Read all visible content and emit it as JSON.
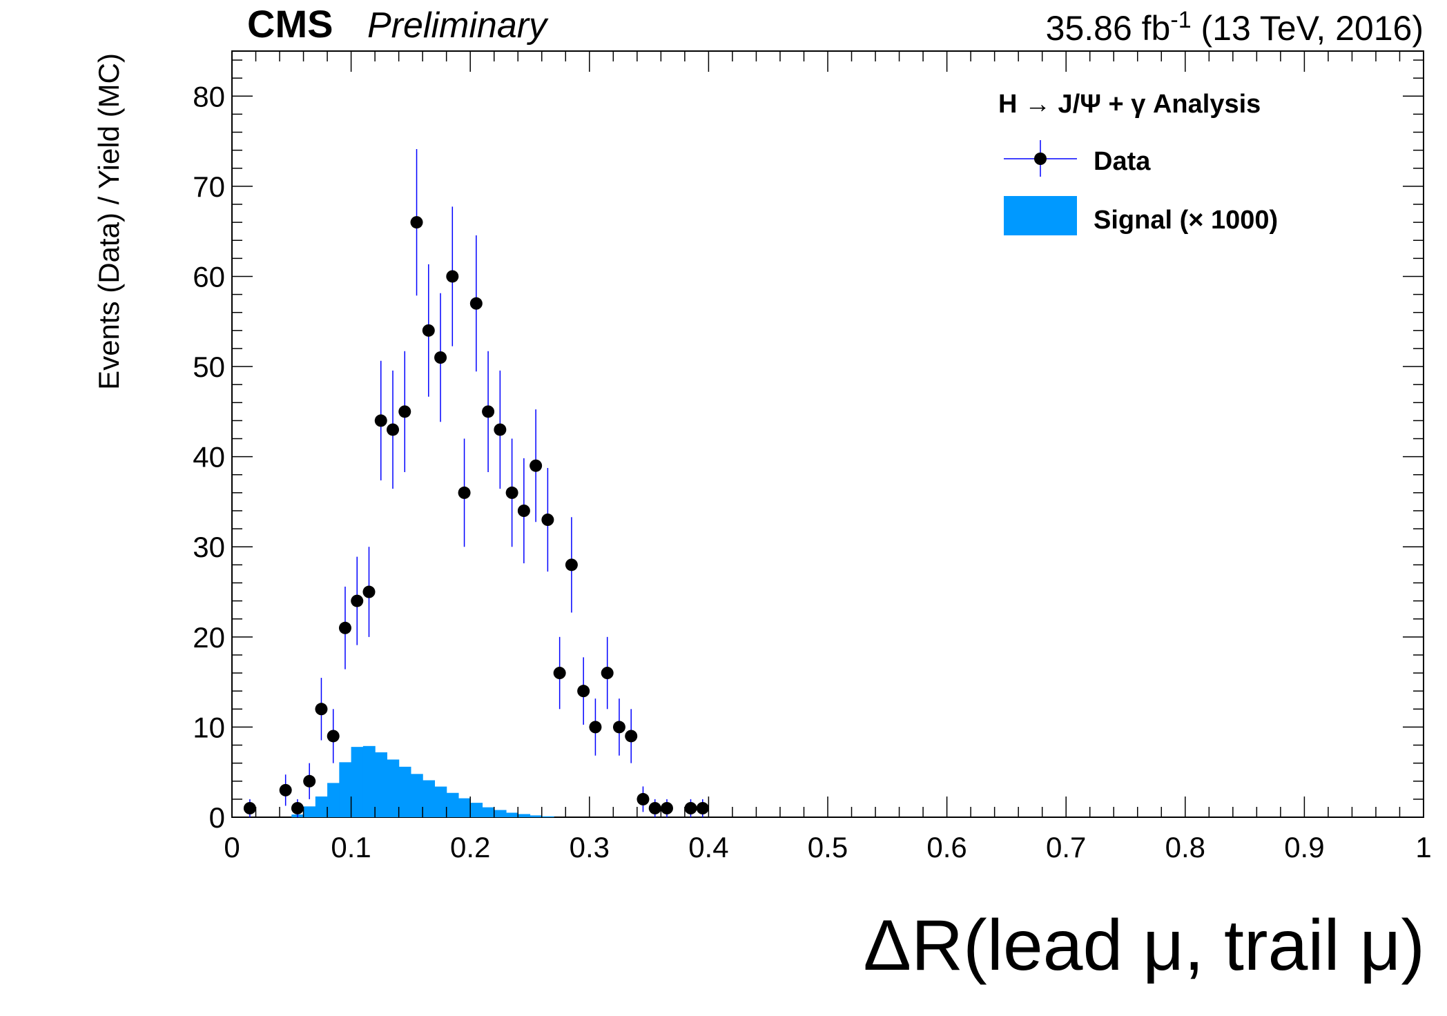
{
  "header": {
    "cms": "CMS",
    "preliminary": "Preliminary",
    "lumi_value": "35.86 fb",
    "lumi_exp": "-1",
    "lumi_rest": " (13 TeV, 2016)"
  },
  "legend": {
    "title": "H → J/Ψ + γ Analysis",
    "data_label": "Data",
    "signal_label": "Signal (× 1000)"
  },
  "colors": {
    "signal_fill": "#0099ff",
    "error_bar": "#0000ff",
    "marker": "#000000"
  },
  "chart_data": {
    "type": "histogram",
    "xlabel": "ΔR(lead μ, trail μ)",
    "ylabel": "Events (Data) / Yield (MC)",
    "xlim": [
      0,
      1
    ],
    "ylim": [
      0,
      85
    ],
    "x_ticks": [
      "0",
      "0.1",
      "0.2",
      "0.3",
      "0.4",
      "0.5",
      "0.6",
      "0.7",
      "0.8",
      "0.9",
      "1"
    ],
    "y_ticks": [
      "0",
      "10",
      "20",
      "30",
      "40",
      "50",
      "60",
      "70",
      "80"
    ],
    "bin_width": 0.01,
    "series": [
      {
        "name": "Data",
        "kind": "points",
        "x": [
          0.015,
          0.045,
          0.055,
          0.065,
          0.075,
          0.085,
          0.095,
          0.105,
          0.115,
          0.125,
          0.135,
          0.145,
          0.155,
          0.165,
          0.175,
          0.185,
          0.195,
          0.205,
          0.215,
          0.225,
          0.235,
          0.245,
          0.255,
          0.265,
          0.275,
          0.285,
          0.295,
          0.305,
          0.315,
          0.325,
          0.335,
          0.345,
          0.355,
          0.365,
          0.385,
          0.395
        ],
        "y": [
          1,
          3,
          1,
          4,
          12,
          9,
          21,
          24,
          25,
          44,
          43,
          45,
          66,
          54,
          51,
          60,
          36,
          57,
          45,
          43,
          36,
          34,
          39,
          33,
          16,
          28,
          14,
          10,
          16,
          10,
          9,
          2,
          1,
          1,
          1,
          1
        ]
      },
      {
        "name": "Signal (× 1000)",
        "kind": "filled-histogram",
        "bin_low_edges": [
          0.05,
          0.06,
          0.07,
          0.08,
          0.09,
          0.1,
          0.11,
          0.12,
          0.13,
          0.14,
          0.15,
          0.16,
          0.17,
          0.18,
          0.19,
          0.2,
          0.21,
          0.22,
          0.23,
          0.24,
          0.25,
          0.26
        ],
        "values": [
          0.3,
          1.2,
          2.3,
          3.8,
          6.1,
          7.8,
          7.9,
          7.2,
          6.4,
          5.6,
          4.8,
          4.1,
          3.4,
          2.7,
          2.1,
          1.6,
          1.1,
          0.8,
          0.5,
          0.35,
          0.2,
          0.1
        ]
      }
    ]
  }
}
